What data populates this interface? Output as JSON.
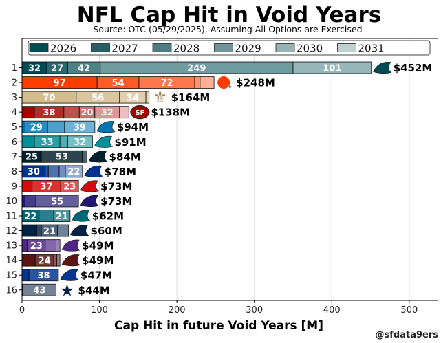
{
  "title": "NFL Cap Hit in Void Years",
  "subtitle": "Source: OTC (05/29/2025), Assuming All Options are Exercised",
  "credit": "@sfdata9ers",
  "chart_data": {
    "type": "bar",
    "orientation": "horizontal",
    "stacked": true,
    "title": "NFL Cap Hit in Void Years",
    "subtitle": "Source: OTC (05/29/2025), Assuming All Options are Exercised",
    "xlabel": "Cap Hit in future Void Years [M]",
    "ylabel": "",
    "xlim": [
      0,
      537
    ],
    "xticks": [
      "0",
      "100",
      "200",
      "300",
      "400",
      "500"
    ],
    "grid": "x",
    "legend": {
      "placement": "top",
      "items": [
        {
          "label": "2026",
          "color": "#004C54"
        },
        {
          "label": "2027",
          "color": "#285F65"
        },
        {
          "label": "2028",
          "color": "#4D7D82"
        },
        {
          "label": "2029",
          "color": "#6F979A"
        },
        {
          "label": "2030",
          "color": "#97B3B5"
        },
        {
          "label": "2031",
          "color": "#BFD0D1"
        }
      ]
    },
    "teams": [
      {
        "rank": "1",
        "team": "Eagles",
        "color": "#004C54",
        "logo_icon": "eagles-logo",
        "total": 452,
        "total_label": "$452M",
        "segments": [
          {
            "year": "2026",
            "value": 32,
            "label": "32"
          },
          {
            "year": "2027",
            "value": 27,
            "label": "27"
          },
          {
            "year": "2028",
            "value": 42,
            "label": "42"
          },
          {
            "year": "2029",
            "value": 249,
            "label": "249"
          },
          {
            "year": "2030",
            "value": 101,
            "label": "101"
          }
        ]
      },
      {
        "rank": "2",
        "team": "Browns",
        "color": "#FF3C00",
        "logo_icon": "browns-helmet-logo",
        "total": 248,
        "total_label": "$248M",
        "segments": [
          {
            "year": "2026",
            "value": 97,
            "label": "97"
          },
          {
            "year": "2027",
            "value": 54,
            "label": "54"
          },
          {
            "year": "2028",
            "value": 72,
            "label": "72"
          },
          {
            "year": "2029",
            "value": 7
          },
          {
            "year": "2030",
            "value": 18
          }
        ]
      },
      {
        "rank": "3",
        "team": "Saints",
        "color": "#D3BC8D",
        "logo_icon": "saints-fleur-de-lis-logo",
        "total": 164,
        "total_label": "$164M",
        "segments": [
          {
            "year": "2026",
            "value": 70,
            "label": "70"
          },
          {
            "year": "2027",
            "value": 56,
            "label": "56"
          },
          {
            "year": "2028",
            "value": 34,
            "label": "34"
          },
          {
            "year": "2029",
            "value": 4
          }
        ]
      },
      {
        "rank": "4",
        "team": "49ers",
        "color": "#AA0000",
        "logo_icon": "49ers-logo",
        "total": 138,
        "total_label": "$138M",
        "segments": [
          {
            "year": "2026",
            "value": 16
          },
          {
            "year": "2027",
            "value": 38,
            "label": "38"
          },
          {
            "year": "2028",
            "value": 20
          },
          {
            "year": "2029",
            "value": 20,
            "label": "20"
          },
          {
            "year": "2030",
            "value": 32,
            "label": "32"
          },
          {
            "year": "2031",
            "value": 12
          }
        ]
      },
      {
        "rank": "5",
        "team": "Lions",
        "color": "#0076B6",
        "logo_icon": "lions-logo",
        "total": 94,
        "total_label": "$94M",
        "segments": [
          {
            "year": "2026",
            "value": 4
          },
          {
            "year": "2027",
            "value": 29,
            "label": "29"
          },
          {
            "year": "2028",
            "value": 22
          },
          {
            "year": "2029",
            "value": 39,
            "label": "39"
          }
        ]
      },
      {
        "rank": "6",
        "team": "Dolphins",
        "color": "#008E97",
        "logo_icon": "dolphins-logo",
        "total": 91,
        "total_label": "$91M",
        "segments": [
          {
            "year": "2026",
            "value": 16
          },
          {
            "year": "2027",
            "value": 33,
            "label": "33"
          },
          {
            "year": "2028",
            "value": 10
          },
          {
            "year": "2029",
            "value": 32,
            "label": "32"
          }
        ]
      },
      {
        "rank": "7",
        "team": "Texans",
        "color": "#03202F",
        "logo_icon": "texans-logo",
        "total": 84,
        "total_label": "$84M",
        "segments": [
          {
            "year": "2026",
            "value": 25,
            "label": "25"
          },
          {
            "year": "2027",
            "value": 53,
            "label": "53"
          },
          {
            "year": "2028",
            "value": 6
          }
        ]
      },
      {
        "rank": "8",
        "team": "Bills",
        "color": "#00338D",
        "logo_icon": "bills-logo",
        "total": 78,
        "total_label": "$78M",
        "segments": [
          {
            "year": "2026",
            "value": 30,
            "label": "30"
          },
          {
            "year": "2027",
            "value": 4
          },
          {
            "year": "2028",
            "value": 14
          },
          {
            "year": "2029",
            "value": 8
          },
          {
            "year": "2030",
            "value": 22,
            "label": "22"
          }
        ]
      },
      {
        "rank": "9",
        "team": "Buccaneers",
        "color": "#D50A0A",
        "logo_icon": "buccaneers-flag-logo",
        "total": 73,
        "total_label": "$73M",
        "segments": [
          {
            "year": "2026",
            "value": 13
          },
          {
            "year": "2027",
            "value": 37,
            "label": "37"
          },
          {
            "year": "2028",
            "value": 23,
            "label": "23"
          }
        ]
      },
      {
        "rank": "10",
        "team": "Ravens",
        "color": "#241773",
        "logo_icon": "ravens-logo",
        "total": 73,
        "total_label": "$73M",
        "segments": [
          {
            "year": "2026",
            "value": 4
          },
          {
            "year": "2027",
            "value": 14
          },
          {
            "year": "2028",
            "value": 55,
            "label": "55"
          }
        ]
      },
      {
        "rank": "11",
        "team": "Jaguars",
        "color": "#006778",
        "logo_icon": "jaguars-logo",
        "total": 62,
        "total_label": "$62M",
        "segments": [
          {
            "year": "2026",
            "value": 22,
            "label": "22"
          },
          {
            "year": "2027",
            "value": 19
          },
          {
            "year": "2028",
            "value": 21,
            "label": "21"
          }
        ]
      },
      {
        "rank": "12",
        "team": "Broncos",
        "color": "#002244",
        "logo_icon": "broncos-logo",
        "total": 60,
        "total_label": "$60M",
        "segments": [
          {
            "year": "2026",
            "value": 19
          },
          {
            "year": "2027",
            "value": 6
          },
          {
            "year": "2028",
            "value": 21,
            "label": "21"
          },
          {
            "year": "2029",
            "value": 14
          }
        ]
      },
      {
        "rank": "13",
        "team": "Vikings",
        "color": "#4F2683",
        "logo_icon": "vikings-logo",
        "total": 49,
        "total_label": "$49M",
        "segments": [
          {
            "year": "2026",
            "value": 7
          },
          {
            "year": "2027",
            "value": 23,
            "label": "23"
          },
          {
            "year": "2028",
            "value": 14
          },
          {
            "year": "2029",
            "value": 5
          }
        ]
      },
      {
        "rank": "14",
        "team": "Commanders",
        "color": "#5A1414",
        "logo_icon": "commanders-w-logo",
        "total": 49,
        "total_label": "$49M",
        "segments": [
          {
            "year": "2026",
            "value": 17
          },
          {
            "year": "2027",
            "value": 24,
            "label": "24"
          },
          {
            "year": "2028",
            "value": 4
          },
          {
            "year": "2029",
            "value": 4
          }
        ]
      },
      {
        "rank": "15",
        "team": "Rams",
        "color": "#003594",
        "logo_icon": "rams-logo",
        "total": 47,
        "total_label": "$47M",
        "segments": [
          {
            "year": "2026",
            "value": 9
          },
          {
            "year": "2027",
            "value": 38,
            "label": "38"
          }
        ]
      },
      {
        "rank": "16",
        "team": "Cowboys",
        "color": "#041E42",
        "logo_icon": "cowboys-star-logo",
        "total": 44,
        "total_label": "$44M",
        "segments": [
          {
            "year": "2026",
            "value": 1
          },
          {
            "year": "2029",
            "value": 43,
            "label": "43"
          }
        ]
      }
    ]
  }
}
